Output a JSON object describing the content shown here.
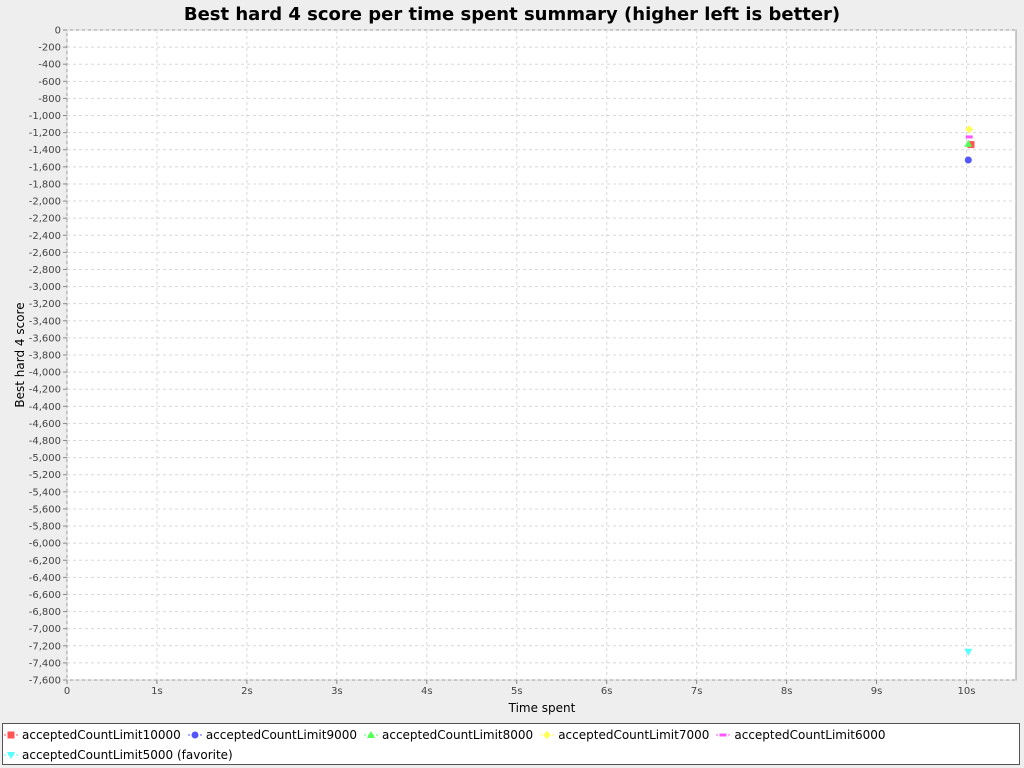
{
  "chart_data": {
    "type": "scatter",
    "title": "Best hard 4 score per time spent summary (higher left is better)",
    "xlabel": "Time spent",
    "ylabel": "Best hard 4 score",
    "xlim": [
      0,
      10.55
    ],
    "ylim": [
      -7600,
      0
    ],
    "x_ticks": [
      0,
      1,
      2,
      3,
      4,
      5,
      6,
      7,
      8,
      9,
      10
    ],
    "x_tick_labels": [
      "0",
      "1s",
      "2s",
      "3s",
      "4s",
      "5s",
      "6s",
      "7s",
      "8s",
      "9s",
      "10s"
    ],
    "y_ticks": [
      0,
      -200,
      -400,
      -600,
      -800,
      -1000,
      -1200,
      -1400,
      -1600,
      -1800,
      -2000,
      -2200,
      -2400,
      -2600,
      -2800,
      -3000,
      -3200,
      -3400,
      -3600,
      -3800,
      -4000,
      -4200,
      -4400,
      -4600,
      -4800,
      -5000,
      -5200,
      -5400,
      -5600,
      -5800,
      -6000,
      -6200,
      -6400,
      -6600,
      -6800,
      -7000,
      -7200,
      -7400,
      -7600
    ],
    "y_tick_labels": [
      "0",
      "-200",
      "-400",
      "-600",
      "-800",
      "-1,000",
      "-1,200",
      "-1,400",
      "-1,600",
      "-1,800",
      "-2,000",
      "-2,200",
      "-2,400",
      "-2,600",
      "-2,800",
      "-3,000",
      "-3,200",
      "-3,400",
      "-3,600",
      "-3,800",
      "-4,000",
      "-4,200",
      "-4,400",
      "-4,600",
      "-4,800",
      "-5,000",
      "-5,200",
      "-5,400",
      "-5,600",
      "-5,800",
      "-6,000",
      "-6,200",
      "-6,400",
      "-6,600",
      "-6,800",
      "-7,000",
      "-7,200",
      "-7,400",
      "-7,600"
    ],
    "grid": true,
    "legend_position": "bottom",
    "series": [
      {
        "name": "acceptedCountLimit10000",
        "color": "#ff5555",
        "marker": "square",
        "points": [
          {
            "x": 10.05,
            "y": -1340
          }
        ]
      },
      {
        "name": "acceptedCountLimit9000",
        "color": "#5555ff",
        "marker": "circle",
        "points": [
          {
            "x": 10.02,
            "y": -1520
          }
        ]
      },
      {
        "name": "acceptedCountLimit8000",
        "color": "#55ff55",
        "marker": "triangle-up",
        "points": [
          {
            "x": 10.02,
            "y": -1330
          }
        ]
      },
      {
        "name": "acceptedCountLimit7000",
        "color": "#ffff55",
        "marker": "diamond",
        "points": [
          {
            "x": 10.03,
            "y": -1160
          }
        ]
      },
      {
        "name": "acceptedCountLimit6000",
        "color": "#ff55ff",
        "marker": "hbar",
        "points": [
          {
            "x": 10.03,
            "y": -1250
          }
        ]
      },
      {
        "name": "acceptedCountLimit5000 (favorite)",
        "color": "#55ffff",
        "marker": "triangle-down",
        "points": [
          {
            "x": 10.02,
            "y": -7270
          }
        ]
      }
    ]
  }
}
